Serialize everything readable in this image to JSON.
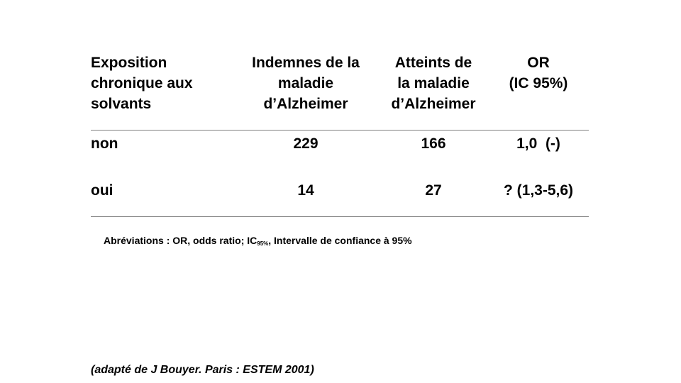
{
  "table": {
    "headers": [
      [
        "Exposition",
        "chronique aux",
        "solvants"
      ],
      [
        "Indemnes de la",
        "maladie",
        "d’Alzheimer"
      ],
      [
        "Atteints de",
        "la maladie",
        "d’Alzheimer"
      ],
      [
        "OR",
        "(IC 95%)"
      ]
    ],
    "rows": [
      {
        "label": "non",
        "indemnes": "229",
        "atteints": "166",
        "or": "1,0  (-)"
      },
      {
        "label": "oui",
        "indemnes": "14",
        "atteints": "27",
        "or": "? (1,3-5,6)"
      }
    ]
  },
  "note": {
    "prefix": "Abréviations : OR, odds ratio; IC",
    "subscript": "95%",
    "suffix": ", Intervalle de confiance à 95%"
  },
  "source": "(adapté de J Bouyer. Paris : ESTEM 2001)"
}
